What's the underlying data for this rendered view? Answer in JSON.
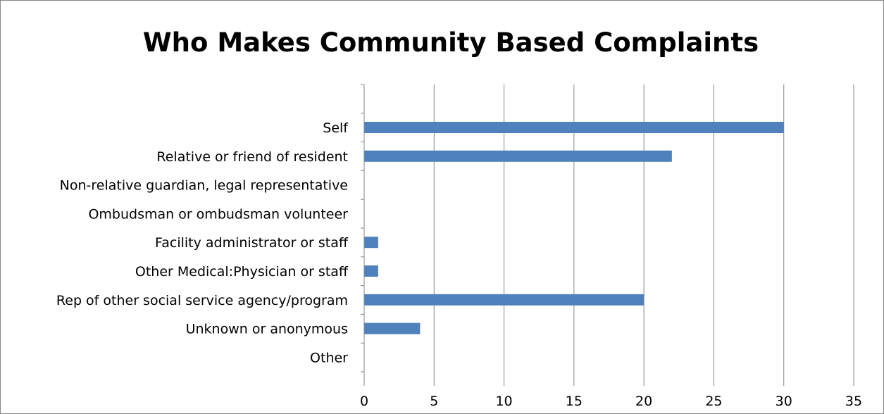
{
  "chart_data": {
    "type": "bar",
    "orientation": "horizontal",
    "title": "Who Makes Community Based Complaints",
    "categories": [
      "Self",
      "Relative or friend of resident",
      "Non-relative guardian, legal representative",
      "Ombudsman or ombudsman volunteer",
      "Facility administrator or staff",
      "Other Medical:Physician or staff",
      "Rep of other social service agency/program",
      "Unknown or anonymous",
      "Other"
    ],
    "values": [
      30,
      22,
      0,
      0,
      1,
      1,
      20,
      4,
      0
    ],
    "xlim": [
      0,
      35
    ],
    "xticks": [
      "0",
      "5",
      "10",
      "15",
      "20",
      "25",
      "30",
      "35"
    ],
    "grid": "vertical",
    "legend": "none",
    "bar_color": "#4f81bd",
    "grid_color": "#868686"
  }
}
